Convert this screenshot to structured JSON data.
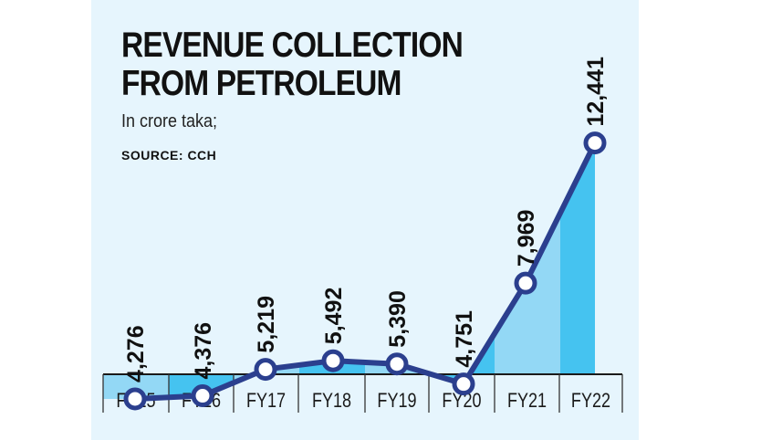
{
  "chart_data": {
    "type": "area",
    "title": "REVENUE COLLECTION FROM PETROLEUM",
    "title_lines": [
      "REVENUE COLLECTION",
      "FROM PETROLEUM"
    ],
    "subtitle": "In crore taka;",
    "source": "SOURCE: CCH",
    "categories": [
      "FY15",
      "FY16",
      "FY17",
      "FY18",
      "FY19",
      "FY20",
      "FY21",
      "FY22"
    ],
    "values": [
      4276,
      4376,
      5219,
      5492,
      5390,
      4751,
      7969,
      12441
    ],
    "value_labels": [
      "4,276",
      "4,376",
      "5,219",
      "5,492",
      "5,390",
      "4,751",
      "7,969",
      "12,441"
    ],
    "ylim": [
      0,
      12441
    ],
    "grid": false,
    "legend": "none"
  },
  "colors": {
    "panel_bg": "#e6f5fd",
    "band_light": "#93d8f5",
    "band_dark": "#45c3f0",
    "line": "#2b3f8e",
    "marker_fill": "#ffffff",
    "text": "#111111"
  }
}
